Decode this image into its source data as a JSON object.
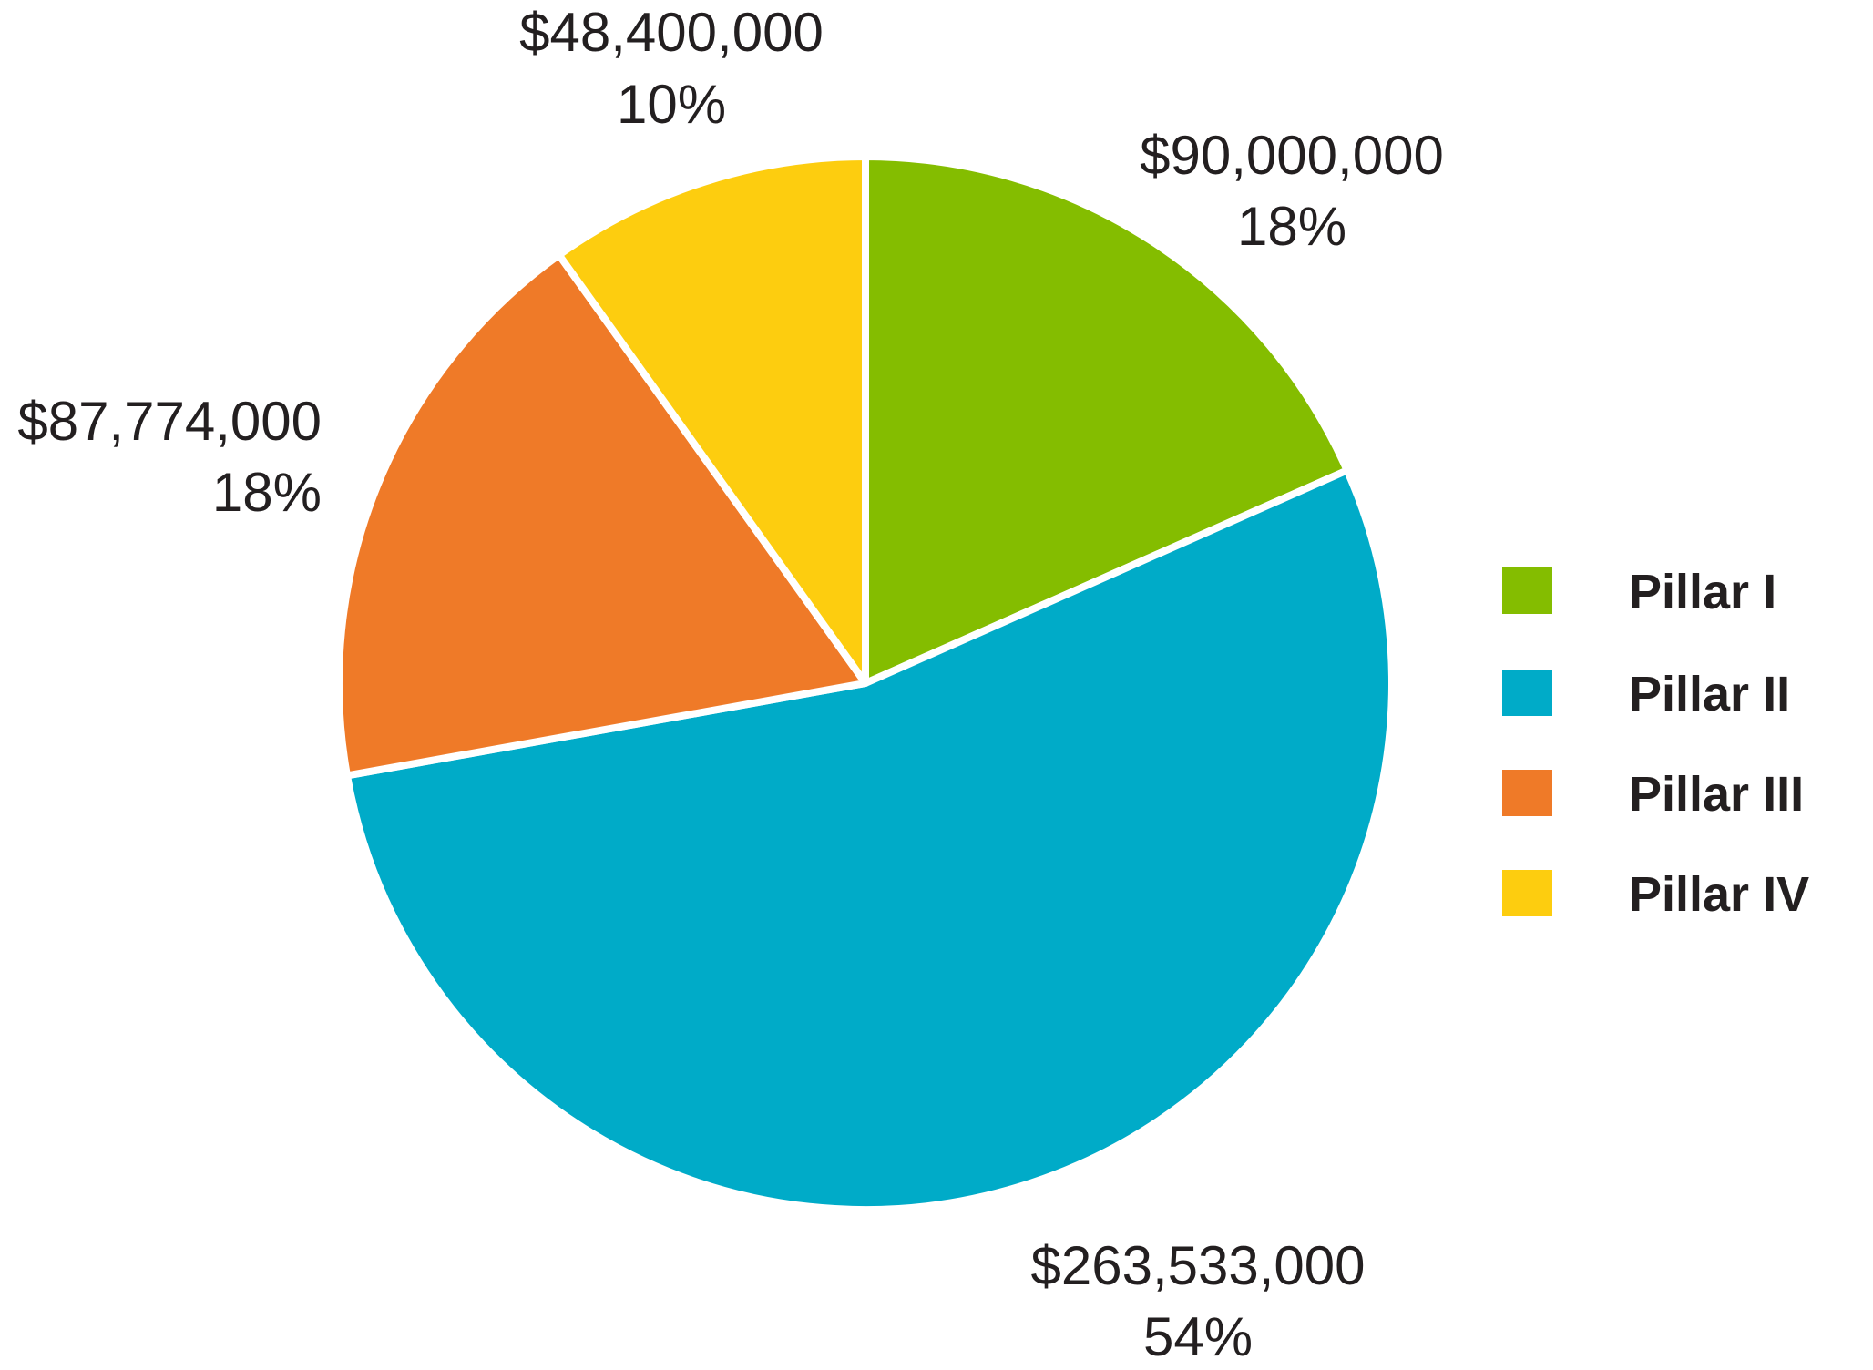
{
  "chart_data": {
    "type": "pie",
    "title": "",
    "start": "12 o'clock",
    "direction": "clockwise",
    "legend_position": "right",
    "slices": [
      {
        "name": "Pillar I",
        "value": 90000000,
        "value_label": "$90,000,000",
        "percent_label": "18%",
        "color": "#84bd00"
      },
      {
        "name": "Pillar II",
        "value": 263533000,
        "value_label": "$263,533,000",
        "percent_label": "54%",
        "color": "#00abc8"
      },
      {
        "name": "Pillar III",
        "value": 87774000,
        "value_label": "$87,774,000",
        "percent_label": "18%",
        "color": "#ef7a28"
      },
      {
        "name": "Pillar IV",
        "value": 48400000,
        "value_label": "$48,400,000",
        "percent_label": "10%",
        "color": "#fdcd0f"
      }
    ]
  }
}
